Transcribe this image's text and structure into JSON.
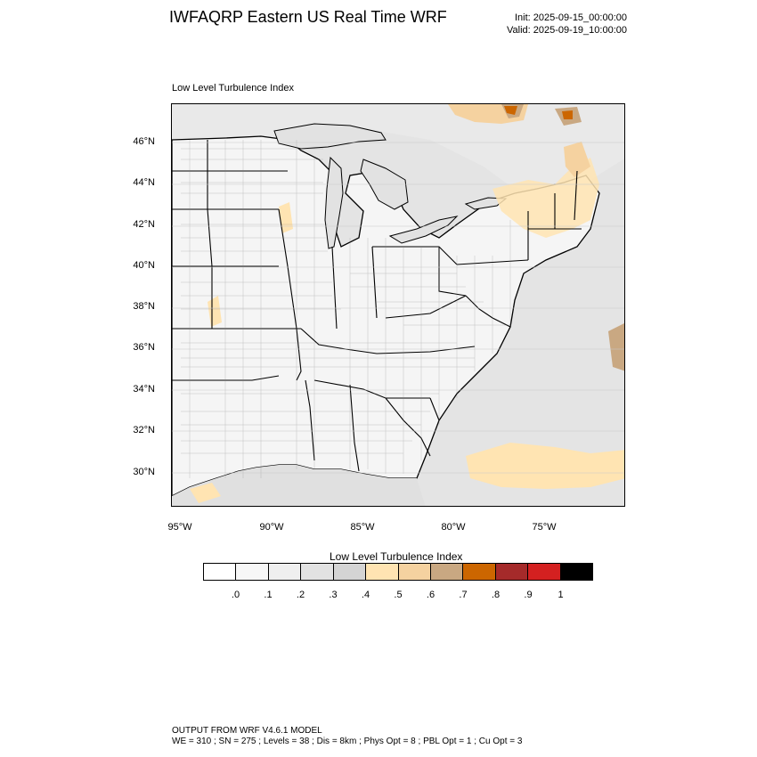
{
  "header": {
    "title": "IWFAQRP Eastern US Real Time WRF",
    "init": "Init: 2025-09-15_00:00:00",
    "valid": "Valid: 2025-09-19_10:00:00"
  },
  "map": {
    "subtitle": "Low Level Turbulence Index",
    "lat_labels": [
      "46°N",
      "44°N",
      "42°N",
      "40°N",
      "38°N",
      "36°N",
      "34°N",
      "32°N",
      "30°N"
    ],
    "lon_labels": [
      "95°W",
      "90°W",
      "85°W",
      "80°W",
      "75°W"
    ],
    "colors": {
      "water_gray": "#e2e2e2",
      "land_light": "#f4f4f4",
      "border": "#000000"
    }
  },
  "colorbar": {
    "title": "Low Level Turbulence Index",
    "labels": [
      ".0",
      ".1",
      ".2",
      ".3",
      ".4",
      ".5",
      ".6",
      ".7",
      ".8",
      ".9",
      "1"
    ],
    "colors": [
      "#ffffff",
      "#f7f7f7",
      "#efefef",
      "#e2e2e2",
      "#d4d4d4",
      "#ffe4b2",
      "#f5d2a0",
      "#c9a882",
      "#cc6600",
      "#a52a2a",
      "#d42020",
      "#000000"
    ]
  },
  "footer": {
    "line1": "OUTPUT FROM WRF V4.6.1 MODEL",
    "line2": "WE = 310 ; SN = 275 ; Levels = 38 ; Dis = 8km ; Phys Opt = 8 ; PBL Opt = 1 ; Cu Opt = 3"
  }
}
